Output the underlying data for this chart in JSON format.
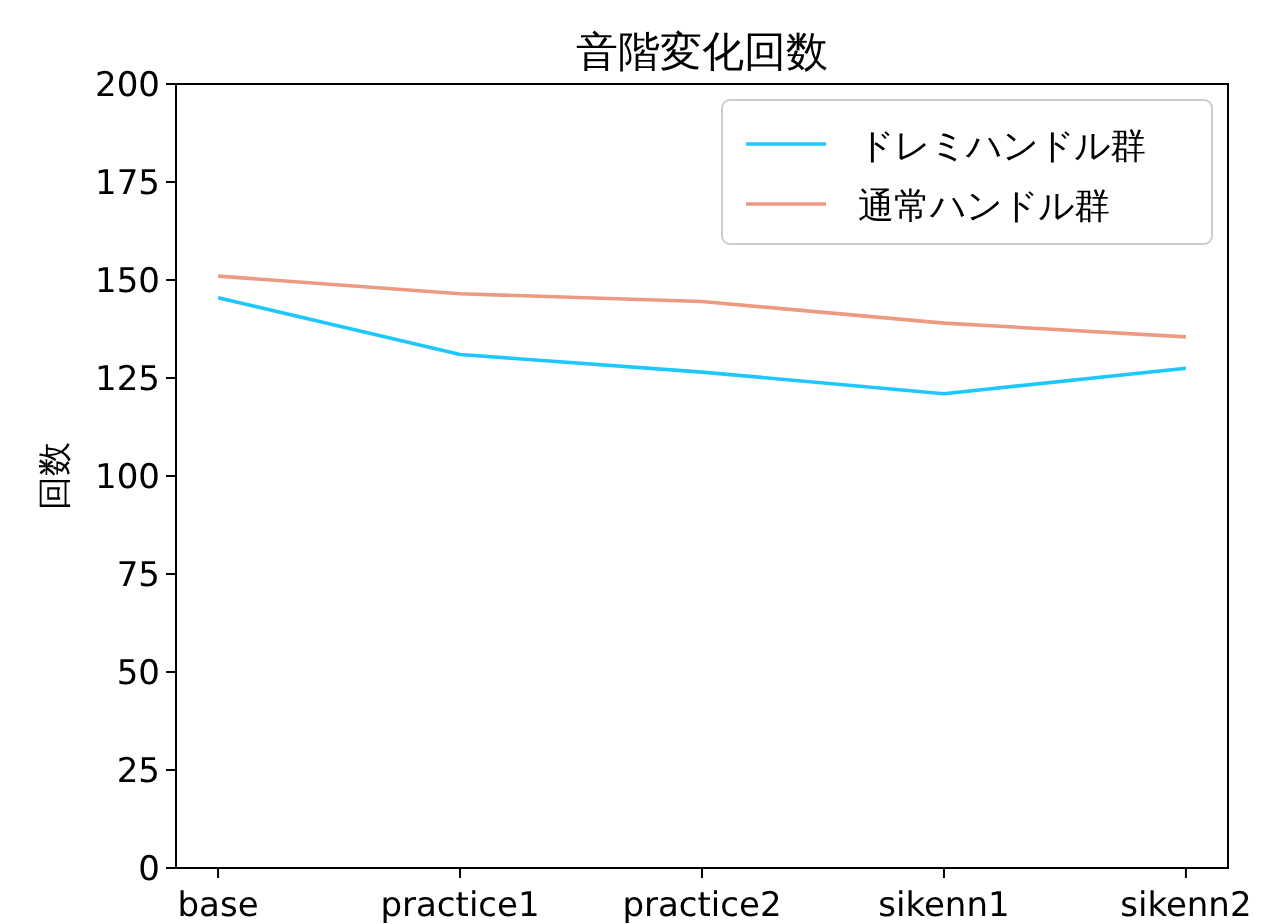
{
  "chart_data": {
    "type": "line",
    "title": "音階変化回数",
    "ylabel": "回数",
    "categories": [
      "base",
      "practice1",
      "practice2",
      "sikenn1",
      "sikenn2"
    ],
    "series": [
      {
        "name": "ドレミハンドル群",
        "color": "#1ec8ff",
        "values": [
          145.5,
          131,
          126.5,
          121,
          127.5
        ]
      },
      {
        "name": "通常ハンドル群",
        "color": "#ec9a82",
        "values": [
          151,
          146.5,
          144.5,
          139,
          135.5
        ]
      }
    ],
    "ylim": [
      0,
      200
    ],
    "yticks": [
      0,
      25,
      50,
      75,
      100,
      125,
      150,
      175,
      200
    ],
    "legend": "top right",
    "grid": false,
    "marker": "none",
    "line_style": "solid"
  }
}
